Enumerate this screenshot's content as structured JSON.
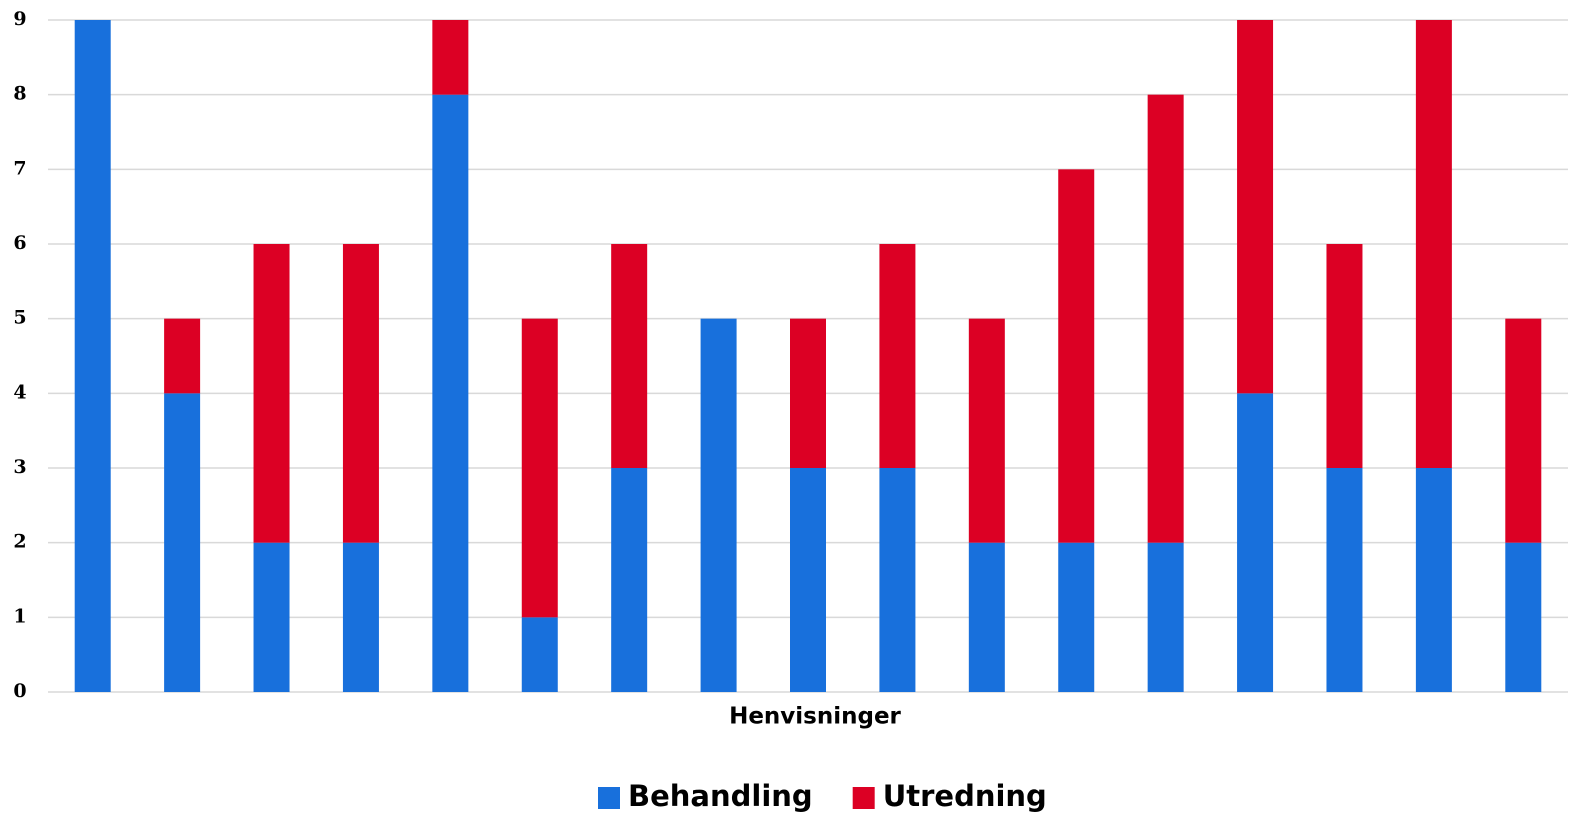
{
  "chart_data": {
    "type": "stacked_bar",
    "categories": [
      null,
      null,
      null,
      null,
      null,
      null,
      null,
      null,
      null,
      null,
      null,
      null,
      null,
      null,
      null,
      null,
      null
    ],
    "series": [
      {
        "name": "Behandling",
        "color": "#1870dc",
        "values": [
          9,
          4,
          2,
          2,
          8,
          1,
          3,
          5,
          3,
          3,
          2,
          2,
          2,
          4,
          3,
          3,
          2
        ]
      },
      {
        "name": "Utredning",
        "color": "#dc0024",
        "values": [
          0,
          1,
          4,
          4,
          1,
          4,
          3,
          0,
          2,
          3,
          3,
          5,
          6,
          5,
          3,
          6,
          3
        ]
      }
    ],
    "x_label": "Henvisninger",
    "ylim": [
      0,
      9
    ],
    "yticks": [
      0,
      1,
      2,
      3,
      4,
      5,
      6,
      7,
      8,
      9
    ],
    "grid": true,
    "legend": "bottom"
  }
}
